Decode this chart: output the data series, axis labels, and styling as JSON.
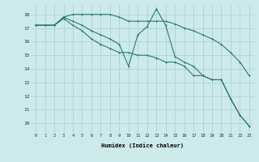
{
  "bg_color": "#cceaea",
  "grid_color": "#aacccc",
  "line_color": "#2a7a6a",
  "xlabel": "Humidex (Indice chaleur)",
  "x_ticks": [
    0,
    1,
    2,
    3,
    4,
    5,
    6,
    7,
    8,
    9,
    10,
    11,
    12,
    13,
    14,
    15,
    16,
    17,
    18,
    19,
    20,
    21,
    22,
    23
  ],
  "y_ticks": [
    10,
    11,
    12,
    13,
    14,
    15,
    16,
    17,
    18
  ],
  "ylim": [
    9.3,
    18.7
  ],
  "xlim": [
    -0.5,
    23.5
  ],
  "line1_x": [
    0,
    1,
    2,
    3,
    4,
    5,
    6,
    7,
    8,
    9,
    10,
    11,
    12,
    13,
    14,
    15,
    16,
    17,
    18,
    19,
    20,
    21,
    22,
    23
  ],
  "line1_y": [
    17.2,
    17.2,
    17.2,
    17.8,
    18.0,
    18.0,
    18.0,
    18.0,
    18.0,
    17.8,
    17.5,
    17.5,
    17.5,
    17.5,
    17.5,
    17.3,
    17.0,
    16.8,
    16.5,
    16.2,
    15.8,
    15.2,
    14.5,
    13.5
  ],
  "line2_x": [
    0,
    1,
    2,
    3,
    4,
    5,
    6,
    7,
    8,
    9,
    10,
    11,
    12,
    13,
    14,
    15,
    16,
    17,
    18,
    19,
    20,
    21,
    22,
    23
  ],
  "line2_y": [
    17.2,
    17.2,
    17.2,
    17.8,
    17.5,
    17.2,
    16.8,
    16.5,
    16.2,
    15.8,
    14.2,
    16.5,
    17.1,
    18.4,
    17.2,
    14.9,
    14.5,
    14.2,
    13.5,
    13.2,
    13.2,
    11.8,
    10.6,
    9.8
  ],
  "line3_x": [
    0,
    1,
    2,
    3,
    4,
    5,
    6,
    7,
    8,
    9,
    10,
    11,
    12,
    13,
    14,
    15,
    16,
    17,
    18,
    19,
    20,
    21,
    22,
    23
  ],
  "line3_y": [
    17.2,
    17.2,
    17.2,
    17.7,
    17.2,
    16.8,
    16.2,
    15.8,
    15.5,
    15.2,
    15.2,
    15.0,
    15.0,
    14.8,
    14.5,
    14.5,
    14.2,
    13.5,
    13.5,
    13.2,
    13.2,
    11.8,
    10.6,
    9.8
  ]
}
